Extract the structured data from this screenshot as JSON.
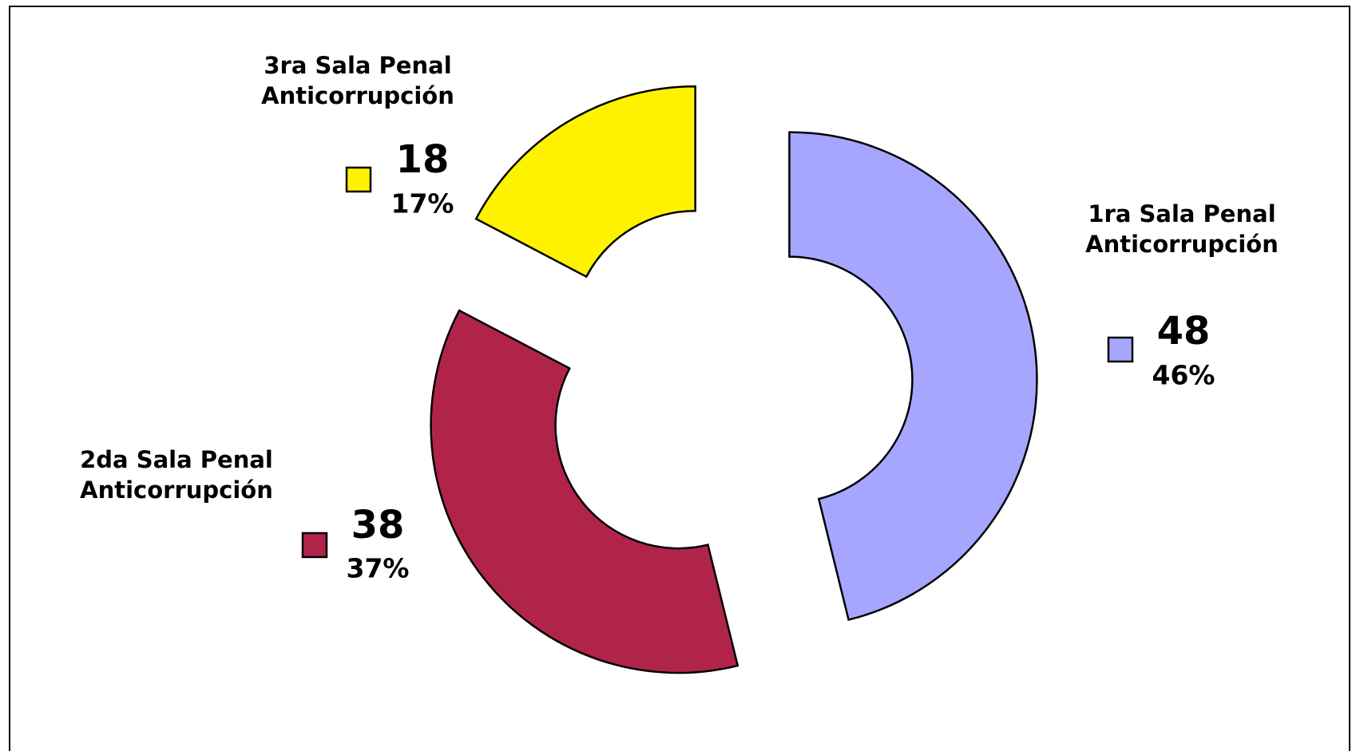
{
  "chart_data": {
    "type": "donut",
    "categories": [
      "1ra Sala Penal Anticorrupción",
      "2da Sala Penal Anticorrupción",
      "3ra Sala Penal Anticorrupción"
    ],
    "values": [
      48,
      38,
      18
    ],
    "percent_labels": [
      "46%",
      "37%",
      "17%"
    ],
    "colors": [
      "#a6a6ff",
      "#b0244a",
      "#fff200"
    ],
    "exploded": true
  }
}
